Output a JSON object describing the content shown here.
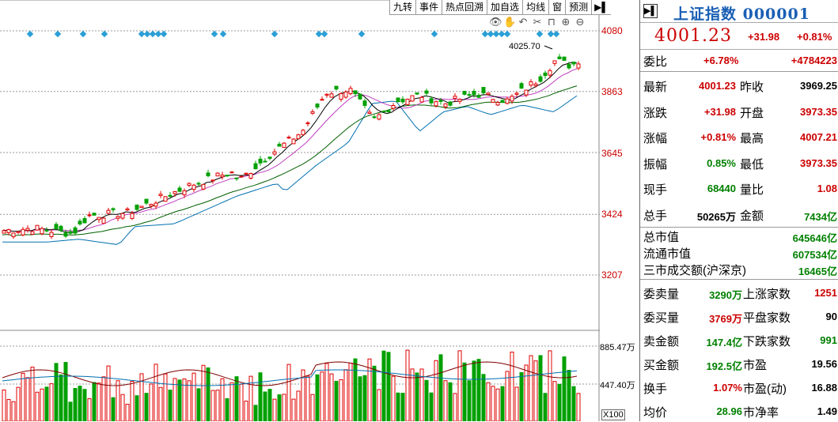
{
  "toolbar": {
    "items": [
      "九转",
      "事件",
      "热点回溯",
      "加自选",
      "均线",
      "窗",
      "预测"
    ],
    "icons": [
      "eye-icon",
      "hand-icon",
      "undo-icon",
      "scissors-icon",
      "lock-icon",
      "zoom-in-icon",
      "zoom-out-icon"
    ]
  },
  "chart": {
    "price_ticks": [
      "4080",
      "3863",
      "3645",
      "3424",
      "3207"
    ],
    "price_tick_values": [
      4080,
      3863,
      3645,
      3424,
      3207
    ],
    "vol_ticks": [
      "885.47万",
      "447.40万"
    ],
    "vol_multiplier": "X100",
    "high_annotation": "4025.70",
    "colors": {
      "up": "#e00000",
      "down": "#00a000",
      "ma5": "#000000",
      "ma10": "#c040c0",
      "ma20": "#006000",
      "ma60": "#0070b0",
      "diamond": "#2a9fd6"
    }
  },
  "chart_data": {
    "type": "candlestick",
    "price_axis": {
      "min": 3207,
      "max": 4080,
      "ticks": [
        4080,
        3863,
        3645,
        3424,
        3207
      ]
    },
    "volume_axis_ticks": [
      "885.47万",
      "447.40万"
    ],
    "last_close": 4001.23,
    "period_high": 4025.7
  },
  "panel": {
    "title": "上证指数 000001",
    "price": "4001.23",
    "change": "+31.98",
    "pct": "+0.81%",
    "weibi_label": "委比",
    "weibi_pct": "+6.78%",
    "weibi_val": "+4784223",
    "rows": [
      {
        "l1": "最新",
        "v1": "4001.23",
        "c1": "r",
        "l2": "昨收",
        "v2": "3969.25",
        "c2": "k"
      },
      {
        "l1": "涨跌",
        "v1": "+31.98",
        "c1": "r",
        "l2": "开盘",
        "v2": "3973.35",
        "c2": "r"
      },
      {
        "l1": "涨幅",
        "v1": "+0.81%",
        "c1": "r",
        "l2": "最高",
        "v2": "4007.21",
        "c2": "r"
      },
      {
        "l1": "振幅",
        "v1": "0.85%",
        "c1": "g",
        "l2": "最低",
        "v2": "3973.35",
        "c2": "r"
      },
      {
        "l1": "现手",
        "v1": "68440",
        "c1": "g",
        "l2": "量比",
        "v2": "1.08",
        "c2": "r"
      },
      {
        "l1": "总手",
        "v1": "50265万",
        "c1": "k",
        "l2": "金额",
        "v2": "7434亿",
        "c2": "g"
      }
    ],
    "mcap": [
      {
        "l": "总市值",
        "v": "645646亿"
      },
      {
        "l": "流通市值",
        "v": "607534亿"
      },
      {
        "l": "三市成交额(沪深京)",
        "v": "16465亿"
      }
    ],
    "rows2": [
      {
        "l1": "委卖量",
        "v1": "3290万",
        "c1": "g",
        "l2": "上涨家数",
        "v2": "1251",
        "c2": "r"
      },
      {
        "l1": "委买量",
        "v1": "3769万",
        "c1": "r",
        "l2": "平盘家数",
        "v2": "90",
        "c2": "k"
      },
      {
        "l1": "卖金额",
        "v1": "147.4亿",
        "c1": "g",
        "l2": "下跌家数",
        "v2": "991",
        "c2": "g"
      },
      {
        "l1": "买金额",
        "v1": "192.5亿",
        "c1": "g",
        "l2": "市盈",
        "v2": "19.56",
        "c2": "k"
      },
      {
        "l1": "换手",
        "v1": "1.07%",
        "c1": "r",
        "l2": "市盈(动)",
        "v2": "16.88",
        "c2": "k"
      },
      {
        "l1": "均价",
        "v1": "28.96",
        "c1": "g",
        "l2": "市净率",
        "v2": "1.49",
        "c2": "k"
      }
    ]
  }
}
